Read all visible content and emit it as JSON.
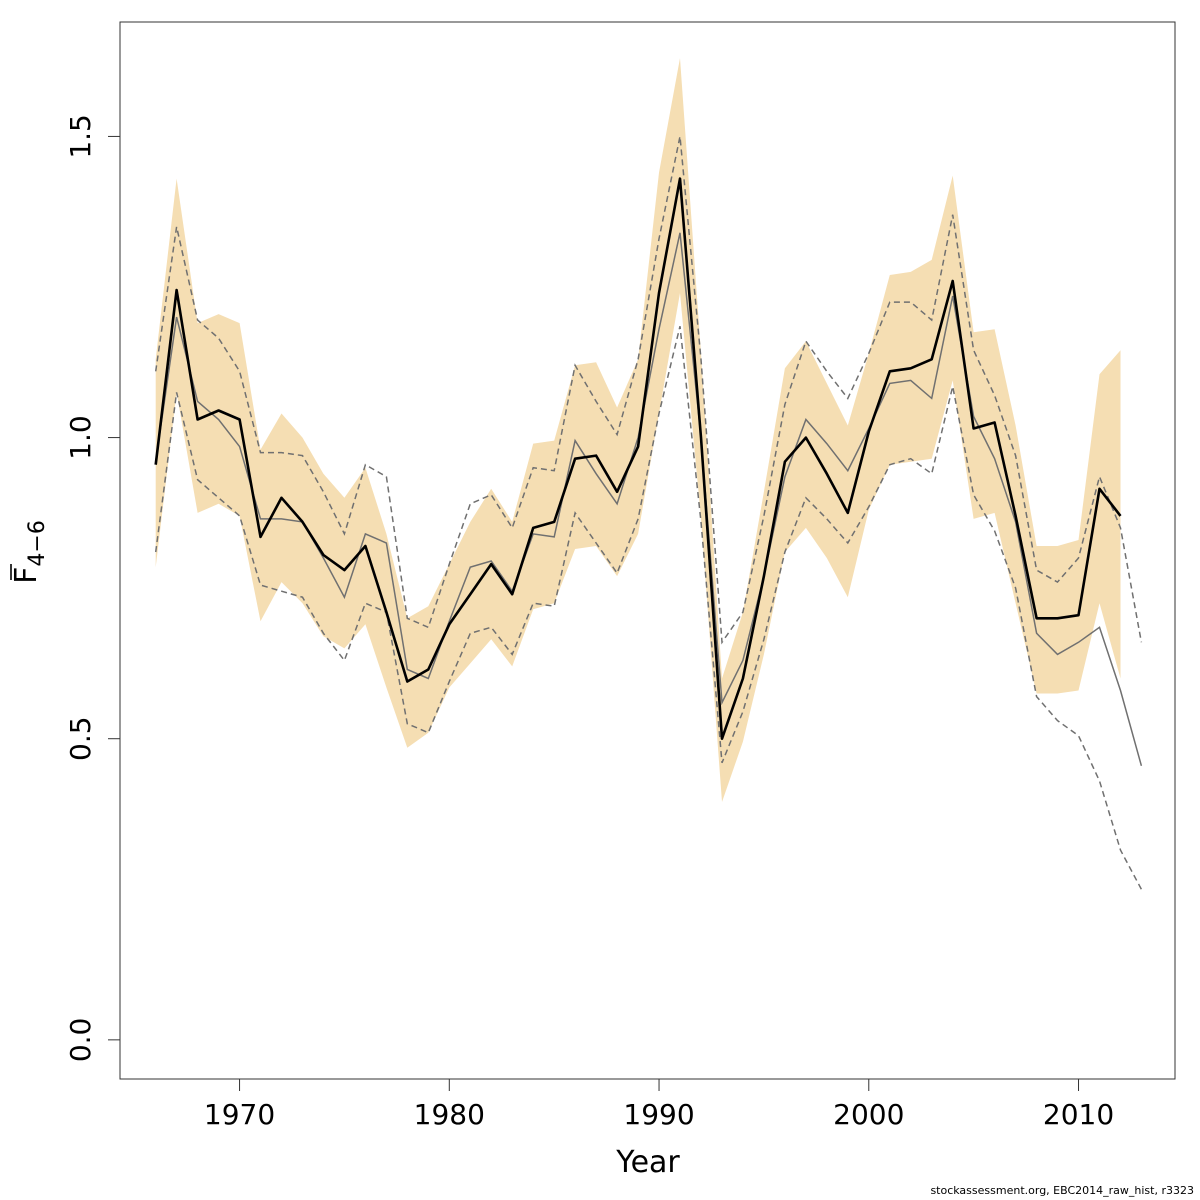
{
  "chart_data": {
    "type": "line",
    "xlabel": "Year",
    "ylabel_main": "F",
    "ylabel_sub": "4−6",
    "xlim": [
      1964.3,
      2014.6
    ],
    "ylim": [
      -0.065,
      1.69
    ],
    "x_ticks": [
      1970,
      1980,
      1990,
      2000,
      2010
    ],
    "x_tick_labels": [
      "1970",
      "1980",
      "1990",
      "2000",
      "2010"
    ],
    "y_ticks": [
      0.0,
      0.5,
      1.0,
      1.5
    ],
    "y_tick_labels": [
      "0.0",
      "0.5",
      "1.0",
      "1.5"
    ],
    "band_color": "#f5deb3",
    "main_color": "#000000",
    "retro_color": "#707070",
    "x": [
      1966,
      1967,
      1968,
      1969,
      1970,
      1971,
      1972,
      1973,
      1974,
      1975,
      1976,
      1977,
      1978,
      1979,
      1980,
      1981,
      1982,
      1983,
      1984,
      1985,
      1986,
      1987,
      1988,
      1989,
      1990,
      1991,
      1992,
      1993,
      1994,
      1995,
      1996,
      1997,
      1998,
      1999,
      2000,
      2001,
      2002,
      2003,
      2004,
      2005,
      2006,
      2007,
      2008,
      2009,
      2010,
      2011,
      2012
    ],
    "series": [
      {
        "role": "estimate",
        "values": [
          0.955,
          1.245,
          1.03,
          1.045,
          1.03,
          0.835,
          0.9,
          0.86,
          0.805,
          0.78,
          0.82,
          0.71,
          0.595,
          0.615,
          0.69,
          0.74,
          0.79,
          0.74,
          0.85,
          0.86,
          0.965,
          0.97,
          0.91,
          0.985,
          1.24,
          1.43,
          1.0,
          0.5,
          0.6,
          0.77,
          0.96,
          1.0,
          0.94,
          0.875,
          1.01,
          1.11,
          1.115,
          1.13,
          1.26,
          1.015,
          1.025,
          0.87,
          0.7,
          0.7,
          0.705,
          0.915,
          0.87
        ]
      },
      {
        "role": "ci_upper",
        "values": [
          1.13,
          1.43,
          1.19,
          1.205,
          1.19,
          0.98,
          1.04,
          1.0,
          0.94,
          0.9,
          0.95,
          0.84,
          0.7,
          0.72,
          0.79,
          0.86,
          0.915,
          0.86,
          0.99,
          0.995,
          1.12,
          1.125,
          1.05,
          1.13,
          1.44,
          1.63,
          1.14,
          0.6,
          0.71,
          0.91,
          1.115,
          1.16,
          1.09,
          1.02,
          1.14,
          1.27,
          1.275,
          1.295,
          1.435,
          1.175,
          1.18,
          1.02,
          0.82,
          0.82,
          0.83,
          1.105,
          1.145
        ]
      },
      {
        "role": "ci_lower",
        "values": [
          0.785,
          1.075,
          0.875,
          0.89,
          0.87,
          0.695,
          0.76,
          0.725,
          0.67,
          0.65,
          0.69,
          0.585,
          0.485,
          0.51,
          0.585,
          0.625,
          0.665,
          0.62,
          0.715,
          0.725,
          0.815,
          0.82,
          0.77,
          0.84,
          1.04,
          1.24,
          0.865,
          0.395,
          0.495,
          0.64,
          0.81,
          0.85,
          0.8,
          0.735,
          0.88,
          0.955,
          0.96,
          0.965,
          1.095,
          0.865,
          0.875,
          0.725,
          0.575,
          0.575,
          0.58,
          0.725,
          0.6
        ]
      }
    ],
    "retro_series": [
      {
        "role": "retro_solid",
        "x": [
          1966,
          1967,
          1968,
          1969,
          1970,
          1971,
          1972,
          1973,
          1974,
          1975,
          1976,
          1977,
          1978,
          1979,
          1980,
          1981,
          1982,
          1983,
          1984,
          1985,
          1986,
          1987,
          1988,
          1989,
          1990,
          1991,
          1992,
          1993,
          1994,
          1995,
          1996,
          1997,
          1998,
          1999,
          2000,
          2001,
          2002,
          2003,
          2004,
          2005,
          2006,
          2007,
          2008,
          2009,
          2010,
          2011,
          2012,
          2013
        ],
        "values": [
          0.96,
          1.2,
          1.06,
          1.03,
          0.985,
          0.865,
          0.865,
          0.86,
          0.8,
          0.735,
          0.84,
          0.825,
          0.615,
          0.6,
          0.695,
          0.785,
          0.795,
          0.745,
          0.84,
          0.835,
          0.995,
          0.94,
          0.89,
          1.0,
          1.18,
          1.34,
          1.0,
          0.56,
          0.63,
          0.77,
          0.935,
          1.03,
          0.99,
          0.945,
          1.015,
          1.09,
          1.095,
          1.065,
          1.235,
          1.035,
          0.965,
          0.86,
          0.675,
          0.64,
          0.66,
          0.685,
          0.58,
          0.455
        ]
      },
      {
        "role": "retro_upper",
        "x": [
          1966,
          1967,
          1968,
          1969,
          1970,
          1971,
          1972,
          1973,
          1974,
          1975,
          1976,
          1977,
          1978,
          1979,
          1980,
          1981,
          1982,
          1983,
          1984,
          1985,
          1986,
          1987,
          1988,
          1989,
          1990,
          1991,
          1992,
          1993,
          1994,
          1995,
          1996,
          1997,
          1998,
          1999,
          2000,
          2001,
          2002,
          2003,
          2004,
          2005,
          2006,
          2007,
          2008,
          2009,
          2010,
          2011,
          2012,
          2013
        ],
        "values": [
          1.11,
          1.35,
          1.195,
          1.165,
          1.11,
          0.975,
          0.975,
          0.97,
          0.91,
          0.84,
          0.955,
          0.935,
          0.7,
          0.685,
          0.79,
          0.89,
          0.905,
          0.85,
          0.95,
          0.945,
          1.12,
          1.06,
          1.005,
          1.13,
          1.33,
          1.5,
          1.13,
          0.66,
          0.71,
          0.87,
          1.055,
          1.16,
          1.11,
          1.065,
          1.14,
          1.225,
          1.225,
          1.195,
          1.37,
          1.145,
          1.07,
          0.97,
          0.78,
          0.76,
          0.8,
          0.935,
          0.85,
          0.66
        ]
      },
      {
        "role": "retro_lower",
        "x": [
          1966,
          1967,
          1968,
          1969,
          1970,
          1971,
          1972,
          1973,
          1974,
          1975,
          1976,
          1977,
          1978,
          1979,
          1980,
          1981,
          1982,
          1983,
          1984,
          1985,
          1986,
          1987,
          1988,
          1989,
          1990,
          1991,
          1992,
          1993,
          1994,
          1995,
          1996,
          1997,
          1998,
          1999,
          2000,
          2001,
          2002,
          2003,
          2004,
          2005,
          2006,
          2007,
          2008,
          2009,
          2010,
          2011,
          2012,
          2013
        ],
        "values": [
          0.81,
          1.075,
          0.93,
          0.9,
          0.87,
          0.755,
          0.745,
          0.735,
          0.675,
          0.63,
          0.725,
          0.71,
          0.525,
          0.51,
          0.595,
          0.675,
          0.685,
          0.64,
          0.725,
          0.72,
          0.875,
          0.825,
          0.775,
          0.865,
          1.04,
          1.185,
          0.86,
          0.46,
          0.545,
          0.665,
          0.81,
          0.9,
          0.865,
          0.825,
          0.885,
          0.955,
          0.965,
          0.94,
          1.085,
          0.905,
          0.845,
          0.75,
          0.57,
          0.53,
          0.505,
          0.43,
          0.315,
          0.25
        ]
      }
    ]
  },
  "footer": "stockassessment.org, EBC2014_raw_hist, r3323"
}
